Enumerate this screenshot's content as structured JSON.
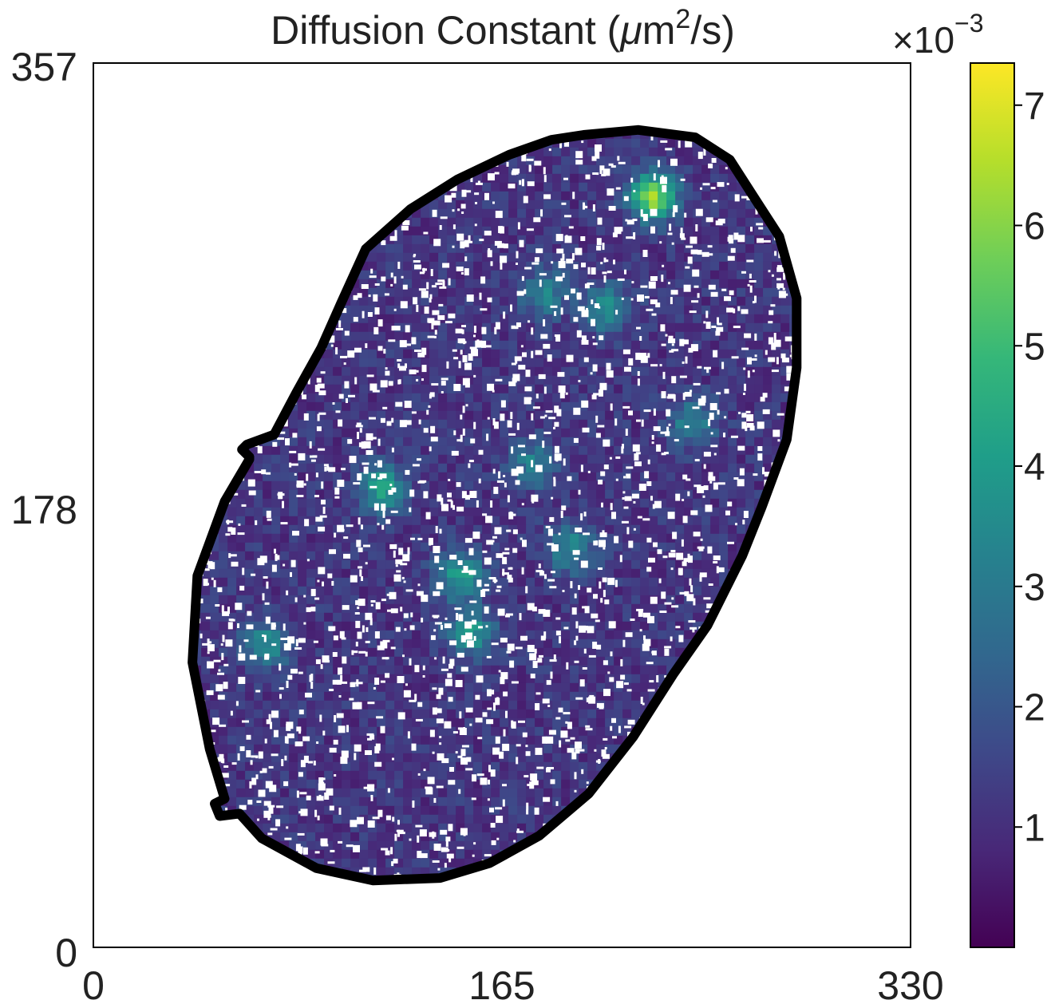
{
  "chart_data": {
    "type": "heatmap",
    "title_parts": {
      "prefix": "Diffusion Constant (",
      "mu": "μ",
      "unit": "m",
      "exponent": "2",
      "suffix": "/s)"
    },
    "x_axis": {
      "range": [
        0,
        330
      ],
      "ticks": [
        "0",
        "165",
        "330"
      ]
    },
    "y_axis": {
      "range": [
        0,
        357
      ],
      "ticks": [
        "0",
        "178",
        "357"
      ]
    },
    "colorbar": {
      "colormap": "viridis",
      "range": [
        0,
        7.35
      ],
      "offset_text": {
        "base": "×10",
        "exponent": "−3"
      },
      "ticks": [
        {
          "value": 1,
          "label": "1"
        },
        {
          "value": 2,
          "label": "2"
        },
        {
          "value": 3,
          "label": "3"
        },
        {
          "value": 4,
          "label": "4"
        },
        {
          "value": 5,
          "label": "5"
        },
        {
          "value": 6,
          "label": "6"
        },
        {
          "value": 7,
          "label": "7"
        }
      ]
    },
    "mask": {
      "description_values": "closed nucleus outline in data coordinates (x, y)",
      "outline": [
        [
          198,
          328
        ],
        [
          220,
          330
        ],
        [
          243,
          327
        ],
        [
          257,
          318
        ],
        [
          266,
          304
        ],
        [
          277,
          287
        ],
        [
          284,
          262
        ],
        [
          284,
          234
        ],
        [
          280,
          205
        ],
        [
          270,
          178
        ],
        [
          262,
          158
        ],
        [
          248,
          130
        ],
        [
          234,
          110
        ],
        [
          218,
          85
        ],
        [
          200,
          62
        ],
        [
          180,
          45
        ],
        [
          160,
          34
        ],
        [
          140,
          28
        ],
        [
          113,
          27
        ],
        [
          90,
          32
        ],
        [
          68,
          44
        ],
        [
          59,
          54
        ],
        [
          51,
          53
        ],
        [
          49,
          58
        ],
        [
          53,
          60
        ],
        [
          47,
          80
        ],
        [
          40,
          115
        ],
        [
          42,
          150
        ],
        [
          53,
          180
        ],
        [
          63,
          197
        ],
        [
          63,
          198
        ],
        [
          60,
          201
        ],
        [
          62,
          203
        ],
        [
          73,
          207
        ],
        [
          82,
          224
        ],
        [
          92,
          242
        ],
        [
          100,
          260
        ],
        [
          110,
          282
        ],
        [
          128,
          298
        ],
        [
          147,
          310
        ],
        [
          168,
          320
        ],
        [
          185,
          326
        ],
        [
          198,
          328
        ]
      ],
      "background_value": 0.6,
      "hotspots": [
        {
          "x": 226,
          "y": 303,
          "value": 7.3
        },
        {
          "x": 117,
          "y": 185,
          "value": 4.8
        },
        {
          "x": 148,
          "y": 150,
          "value": 4.6
        },
        {
          "x": 152,
          "y": 127,
          "value": 4.4
        },
        {
          "x": 207,
          "y": 258,
          "value": 4.2
        },
        {
          "x": 70,
          "y": 122,
          "value": 4.0
        },
        {
          "x": 193,
          "y": 161,
          "value": 3.8
        },
        {
          "x": 242,
          "y": 212,
          "value": 3.6
        },
        {
          "x": 182,
          "y": 264,
          "value": 3.5
        },
        {
          "x": 178,
          "y": 195,
          "value": 3.4
        }
      ]
    },
    "colors": {
      "viridis_stops": [
        "#440154",
        "#482878",
        "#3e4989",
        "#31688e",
        "#26828e",
        "#1f9e89",
        "#35b779",
        "#6ece58",
        "#b5de2b",
        "#fde725"
      ],
      "mask_outline": "#000000"
    }
  }
}
